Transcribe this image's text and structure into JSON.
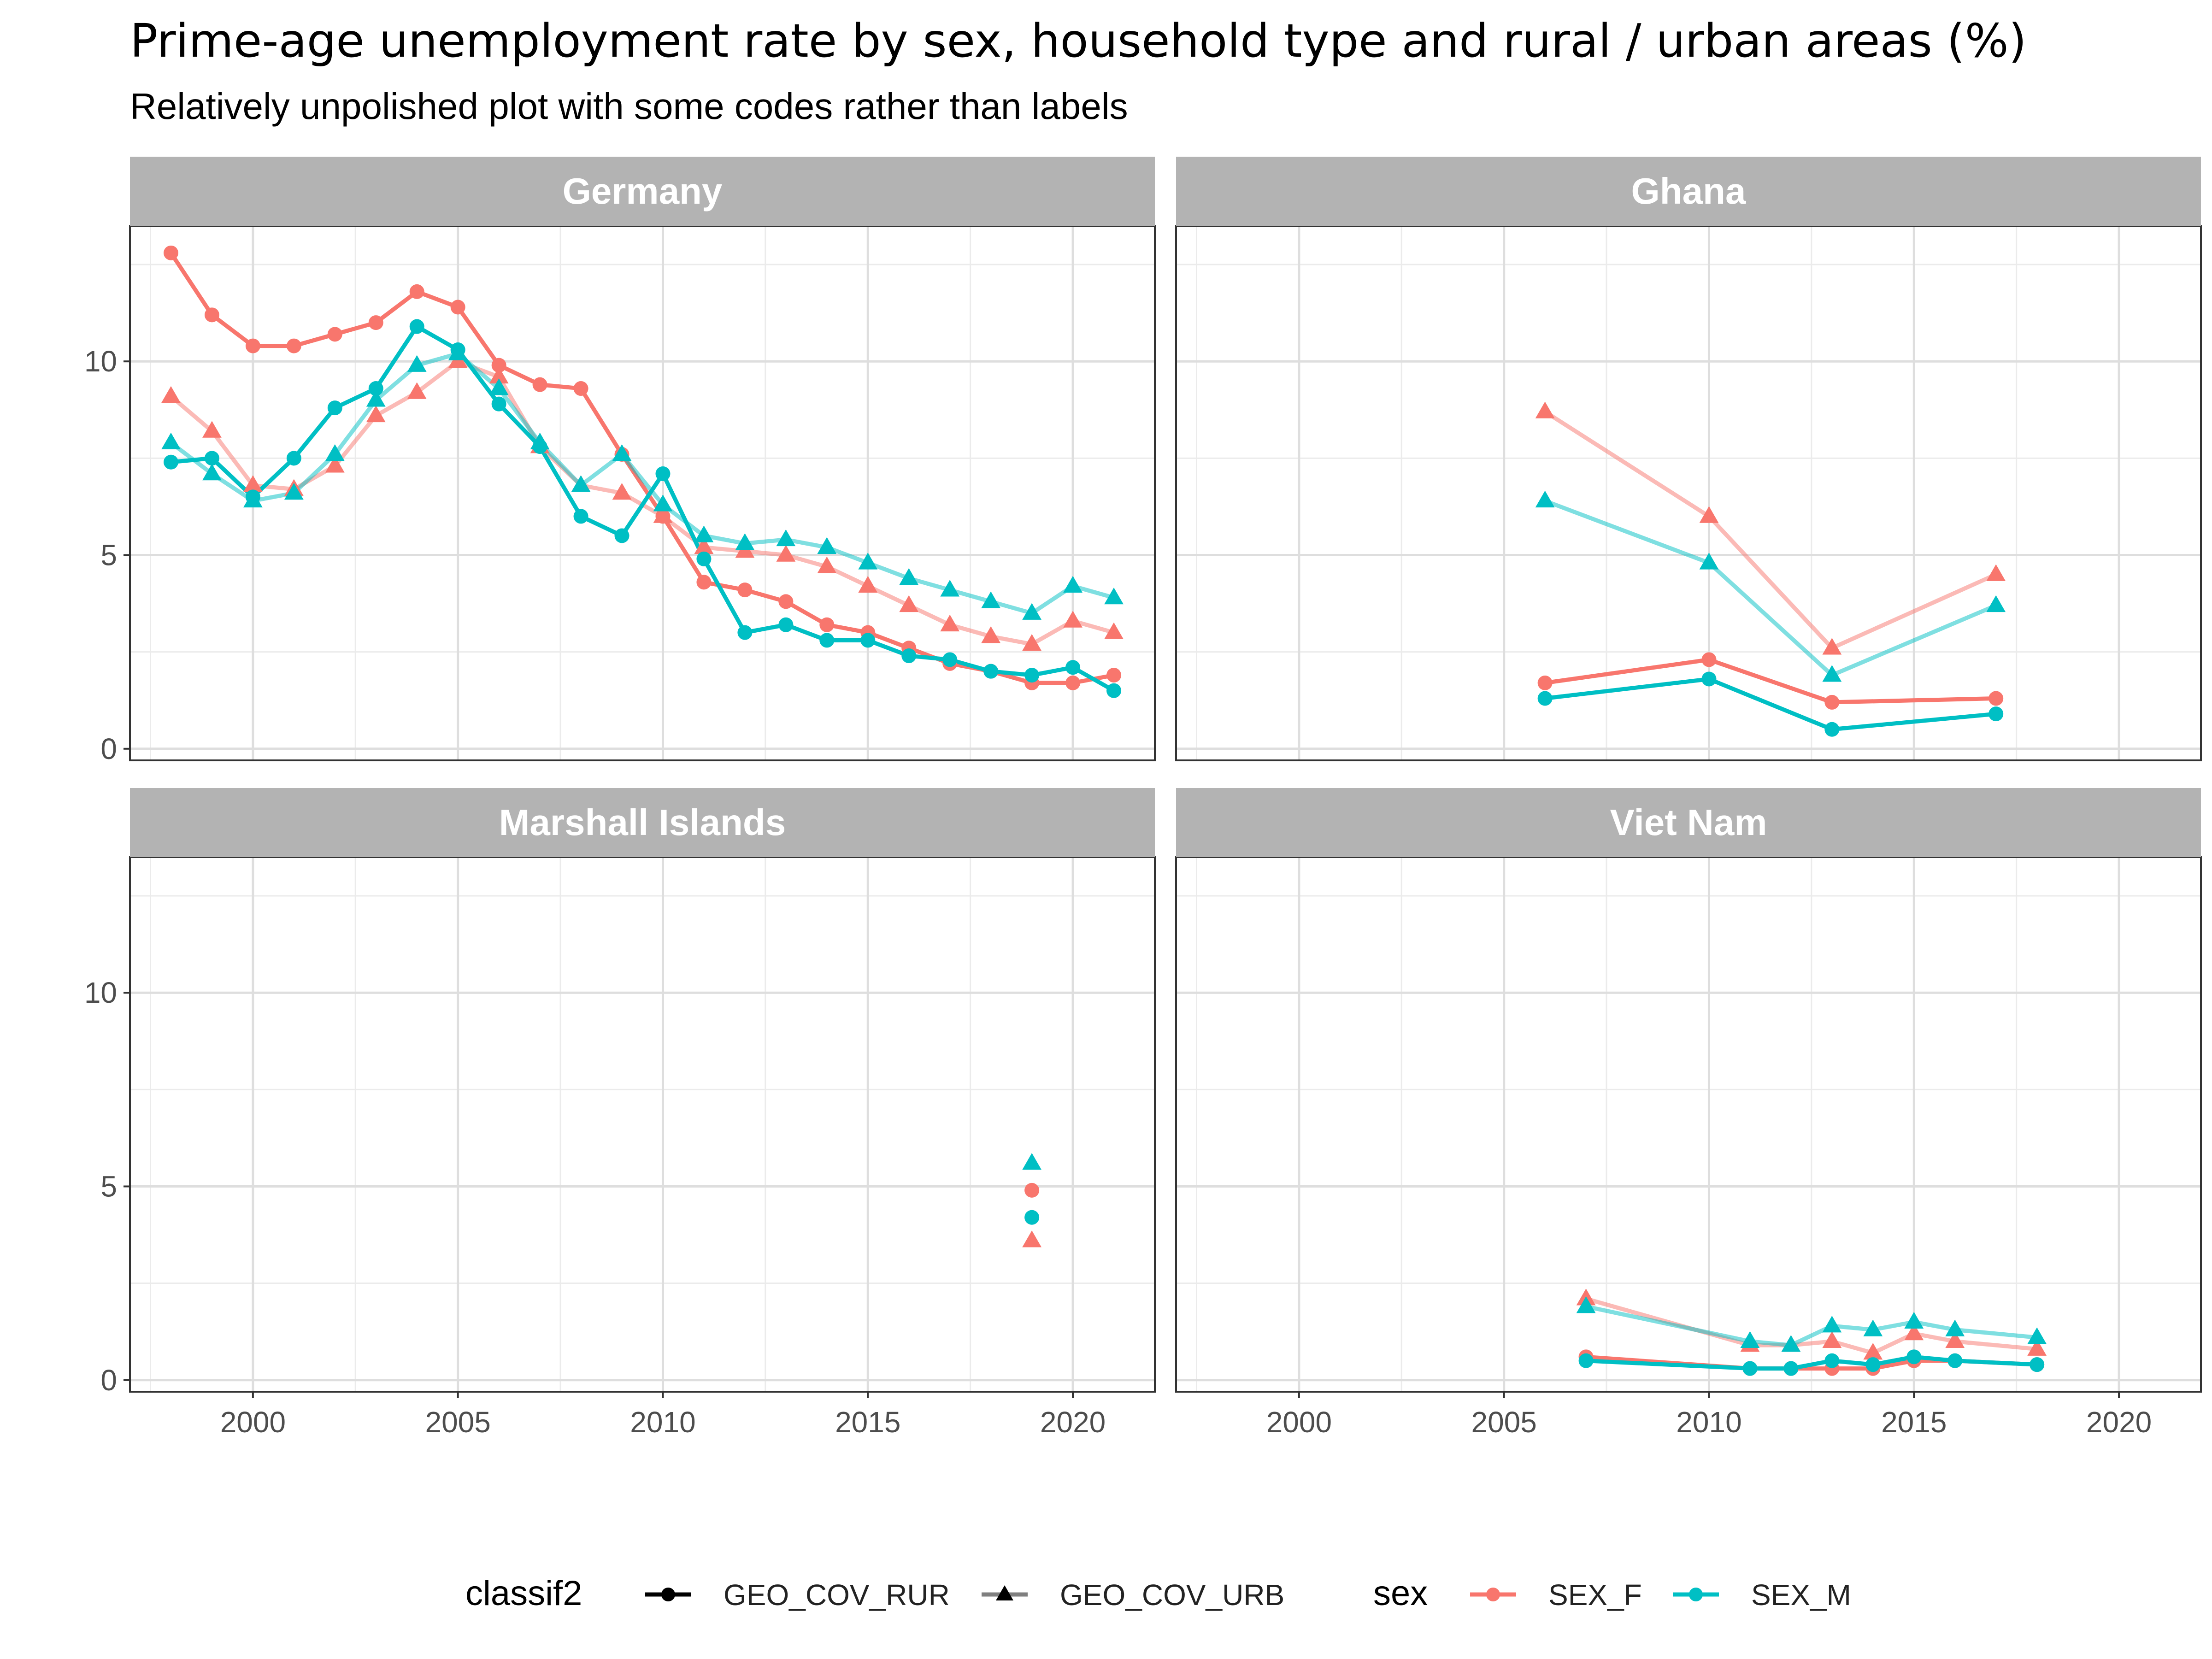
{
  "title": "Prime-age unemployment rate by sex, household type and rural / urban areas (%)",
  "subtitle": "Relatively unpolished plot with some codes rather than labels",
  "colors": {
    "SEX_F": "#F8766D",
    "SEX_M": "#00BFC4",
    "strip_bg": "#B3B3B3",
    "grid": "#EBEBEB",
    "panel_border": "#333333"
  },
  "legend": {
    "classif2_title": "classif2",
    "classif2_items": [
      "GEO_COV_RUR",
      "GEO_COV_URB"
    ],
    "sex_title": "sex",
    "sex_items": [
      "SEX_F",
      "SEX_M"
    ]
  },
  "chart_data": {
    "type": "line",
    "facet_by": "country",
    "x_ticks": [
      2000,
      2005,
      2010,
      2015,
      2020
    ],
    "y_ticks": [
      0,
      5,
      10
    ],
    "xlim": [
      1997,
      2022
    ],
    "ylim": [
      -0.3,
      13.5
    ],
    "grid": true,
    "legend_position": "bottom",
    "panels": [
      {
        "strip": "Germany",
        "series": [
          {
            "sex": "SEX_F",
            "classif2": "GEO_COV_RUR",
            "x": [
              1998,
              1999,
              2000,
              2001,
              2002,
              2003,
              2004,
              2005,
              2006,
              2007,
              2008,
              2009,
              2010,
              2011,
              2012,
              2013,
              2014,
              2015,
              2016,
              2017,
              2018,
              2019,
              2020,
              2021
            ],
            "y": [
              12.8,
              11.2,
              10.4,
              10.4,
              10.7,
              11.0,
              11.8,
              11.4,
              9.9,
              9.4,
              9.3,
              7.6,
              6.0,
              4.3,
              4.1,
              3.8,
              3.2,
              3.0,
              2.6,
              2.2,
              2.0,
              1.7,
              1.7,
              1.9
            ]
          },
          {
            "sex": "SEX_F",
            "classif2": "GEO_COV_URB",
            "x": [
              1998,
              1999,
              2000,
              2001,
              2002,
              2003,
              2004,
              2005,
              2006,
              2007,
              2008,
              2009,
              2010,
              2011,
              2012,
              2013,
              2014,
              2015,
              2016,
              2017,
              2018,
              2019,
              2020,
              2021
            ],
            "y": [
              9.1,
              8.2,
              6.8,
              6.7,
              7.3,
              8.6,
              9.2,
              10.0,
              9.6,
              7.8,
              6.8,
              6.6,
              6.0,
              5.2,
              5.1,
              5.0,
              4.7,
              4.2,
              3.7,
              3.2,
              2.9,
              2.7,
              3.3,
              3.0
            ]
          },
          {
            "sex": "SEX_M",
            "classif2": "GEO_COV_RUR",
            "x": [
              1998,
              1999,
              2000,
              2001,
              2002,
              2003,
              2004,
              2005,
              2006,
              2007,
              2008,
              2009,
              2010,
              2011,
              2012,
              2013,
              2014,
              2015,
              2016,
              2017,
              2018,
              2019,
              2020,
              2021
            ],
            "y": [
              7.4,
              7.5,
              6.5,
              7.5,
              8.8,
              9.3,
              10.9,
              10.3,
              8.9,
              7.8,
              6.0,
              5.5,
              7.1,
              4.9,
              3.0,
              3.2,
              2.8,
              2.8,
              2.4,
              2.3,
              2.0,
              1.9,
              2.1,
              1.5
            ]
          },
          {
            "sex": "SEX_M",
            "classif2": "GEO_COV_URB",
            "x": [
              1998,
              1999,
              2000,
              2001,
              2002,
              2003,
              2004,
              2005,
              2006,
              2007,
              2008,
              2009,
              2010,
              2011,
              2012,
              2013,
              2014,
              2015,
              2016,
              2017,
              2018,
              2019,
              2020,
              2021
            ],
            "y": [
              7.9,
              7.1,
              6.4,
              6.6,
              7.6,
              9.0,
              9.9,
              10.2,
              9.3,
              7.9,
              6.8,
              7.6,
              6.3,
              5.5,
              5.3,
              5.4,
              5.2,
              4.8,
              4.4,
              4.1,
              3.8,
              3.5,
              4.2,
              3.9
            ]
          }
        ]
      },
      {
        "strip": "Ghana",
        "series": [
          {
            "sex": "SEX_F",
            "classif2": "GEO_COV_RUR",
            "x": [
              2006,
              2010,
              2013,
              2017
            ],
            "y": [
              1.7,
              2.3,
              1.2,
              1.3
            ]
          },
          {
            "sex": "SEX_F",
            "classif2": "GEO_COV_URB",
            "x": [
              2006,
              2010,
              2013,
              2017
            ],
            "y": [
              8.7,
              6.0,
              2.6,
              4.5
            ]
          },
          {
            "sex": "SEX_M",
            "classif2": "GEO_COV_RUR",
            "x": [
              2006,
              2010,
              2013,
              2017
            ],
            "y": [
              1.3,
              1.8,
              0.5,
              0.9
            ]
          },
          {
            "sex": "SEX_M",
            "classif2": "GEO_COV_URB",
            "x": [
              2006,
              2010,
              2013,
              2017
            ],
            "y": [
              6.4,
              4.8,
              1.9,
              3.7
            ]
          }
        ]
      },
      {
        "strip": "Marshall Islands",
        "series": [
          {
            "sex": "SEX_F",
            "classif2": "GEO_COV_RUR",
            "x": [
              2019
            ],
            "y": [
              4.9
            ]
          },
          {
            "sex": "SEX_F",
            "classif2": "GEO_COV_URB",
            "x": [
              2019
            ],
            "y": [
              3.6
            ]
          },
          {
            "sex": "SEX_M",
            "classif2": "GEO_COV_RUR",
            "x": [
              2019
            ],
            "y": [
              4.2
            ]
          },
          {
            "sex": "SEX_M",
            "classif2": "GEO_COV_URB",
            "x": [
              2019
            ],
            "y": [
              5.6
            ]
          }
        ]
      },
      {
        "strip": "Viet Nam",
        "series": [
          {
            "sex": "SEX_F",
            "classif2": "GEO_COV_RUR",
            "x": [
              2007,
              2011,
              2012,
              2013,
              2014,
              2015,
              2016,
              2018
            ],
            "y": [
              0.6,
              0.3,
              0.3,
              0.3,
              0.3,
              0.5,
              0.5,
              0.4
            ]
          },
          {
            "sex": "SEX_F",
            "classif2": "GEO_COV_URB",
            "x": [
              2007,
              2011,
              2012,
              2013,
              2014,
              2015,
              2016,
              2018
            ],
            "y": [
              2.1,
              0.9,
              0.9,
              1.0,
              0.7,
              1.2,
              1.0,
              0.8
            ]
          },
          {
            "sex": "SEX_M",
            "classif2": "GEO_COV_RUR",
            "x": [
              2007,
              2011,
              2012,
              2013,
              2014,
              2015,
              2016,
              2018
            ],
            "y": [
              0.5,
              0.3,
              0.3,
              0.5,
              0.4,
              0.6,
              0.5,
              0.4
            ]
          },
          {
            "sex": "SEX_M",
            "classif2": "GEO_COV_URB",
            "x": [
              2007,
              2011,
              2012,
              2013,
              2014,
              2015,
              2016,
              2018
            ],
            "y": [
              1.9,
              1.0,
              0.9,
              1.4,
              1.3,
              1.5,
              1.3,
              1.1
            ]
          }
        ]
      }
    ]
  }
}
